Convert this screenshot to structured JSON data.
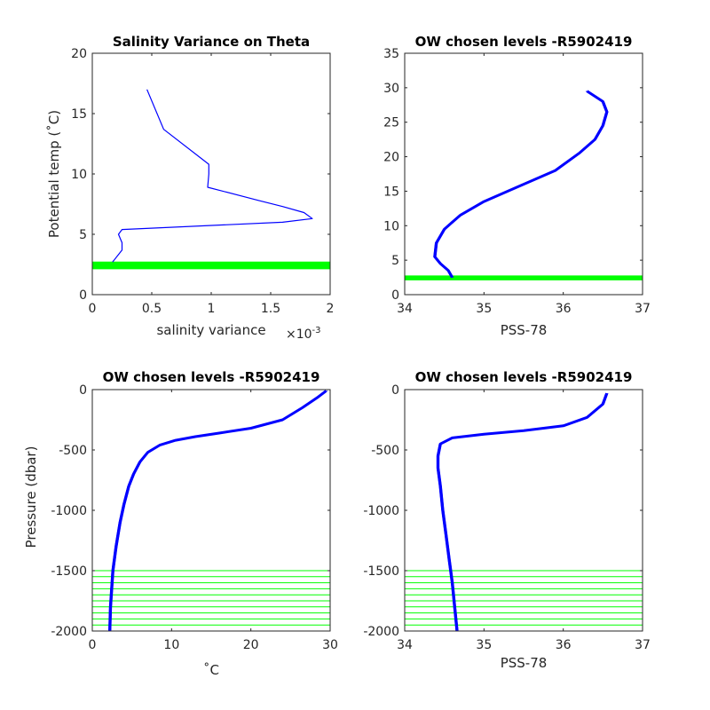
{
  "colors": {
    "series": "#0000ff",
    "levels": "#00ff00",
    "axes": "#262626"
  },
  "chart_data": [
    {
      "type": "line",
      "title": "Salinity Variance on Theta",
      "xlabel": "salinity variance",
      "x_multiplier": "×10",
      "x_multiplier_exp": "-3",
      "ylabel": "Potential temp (˚C)",
      "xlim": [
        0,
        2
      ],
      "ylim": [
        0,
        20
      ],
      "xticks": [
        0,
        0.5,
        1,
        1.5,
        2
      ],
      "xtick_labels": [
        "0",
        "0.5",
        "1",
        "1.5",
        "2"
      ],
      "yticks": [
        0,
        5,
        10,
        15,
        20
      ],
      "ytick_labels": [
        "0",
        "5",
        "10",
        "15",
        "20"
      ],
      "series": [
        {
          "x": [
            0.46,
            0.6,
            0.98,
            0.98,
            0.97,
            1.4,
            1.6,
            1.78,
            1.85,
            1.6,
            0.25,
            0.22,
            0.25,
            0.25,
            0.17
          ],
          "y": [
            17.0,
            13.7,
            10.8,
            10.0,
            8.9,
            7.8,
            7.3,
            6.8,
            6.3,
            6.0,
            5.4,
            5.0,
            4.3,
            3.7,
            2.7
          ]
        }
      ],
      "chosen_levels": [
        2.2,
        2.35,
        2.5,
        2.65
      ]
    },
    {
      "type": "line",
      "title": "OW chosen levels -R5902419",
      "xlabel": "PSS-78",
      "ylabel": "",
      "xlim": [
        34,
        37
      ],
      "ylim": [
        0,
        35
      ],
      "xticks": [
        34,
        35,
        36,
        37
      ],
      "xtick_labels": [
        "34",
        "35",
        "36",
        "37"
      ],
      "yticks": [
        0,
        5,
        10,
        15,
        20,
        25,
        30,
        35
      ],
      "ytick_labels": [
        "0",
        "5",
        "10",
        "15",
        "20",
        "25",
        "30",
        "35"
      ],
      "series": [
        {
          "x": [
            34.6,
            34.55,
            34.45,
            34.38,
            34.4,
            34.5,
            34.7,
            35.0,
            35.4,
            35.9,
            36.2,
            36.4,
            36.5,
            36.55,
            36.5,
            36.3
          ],
          "y": [
            2.5,
            3.5,
            4.5,
            5.5,
            7.5,
            9.5,
            11.5,
            13.5,
            15.5,
            18.0,
            20.5,
            22.5,
            24.5,
            26.5,
            28.0,
            29.5
          ]
        }
      ],
      "chosen_levels": [
        2.2,
        2.35,
        2.5,
        2.65
      ]
    },
    {
      "type": "line",
      "title": "OW chosen levels -R5902419",
      "xlabel": "˚C",
      "ylabel": "Pressure (dbar)",
      "xlim": [
        0,
        30
      ],
      "ylim": [
        -2000,
        0
      ],
      "xticks": [
        0,
        10,
        20,
        30
      ],
      "xtick_labels": [
        "0",
        "10",
        "20",
        "30"
      ],
      "yticks": [
        -2000,
        -1500,
        -1000,
        -500,
        0
      ],
      "ytick_labels": [
        "-2000",
        "-1500",
        "-1000",
        "-500",
        "0"
      ],
      "series": [
        {
          "x": [
            2.2,
            2.3,
            2.6,
            3.0,
            3.5,
            4.0,
            4.6,
            5.2,
            6.0,
            7.0,
            8.5,
            10.5,
            13.0,
            16.0,
            20.0,
            24.0,
            26.5,
            28.5,
            29.5
          ],
          "y": [
            -2000,
            -1800,
            -1500,
            -1300,
            -1100,
            -950,
            -800,
            -700,
            -600,
            -520,
            -460,
            -420,
            -390,
            -360,
            -320,
            -250,
            -150,
            -60,
            -10
          ]
        }
      ],
      "chosen_levels": [
        -1950,
        -1900,
        -1850,
        -1800,
        -1750,
        -1700,
        -1650,
        -1600,
        -1550,
        -1500
      ]
    },
    {
      "type": "line",
      "title": "OW chosen levels -R5902419",
      "xlabel": "PSS-78",
      "ylabel": "",
      "xlim": [
        34,
        37
      ],
      "ylim": [
        -2000,
        0
      ],
      "xticks": [
        34,
        35,
        36,
        37
      ],
      "xtick_labels": [
        "34",
        "35",
        "36",
        "37"
      ],
      "yticks": [
        -2000,
        -1500,
        -1000,
        -500,
        0
      ],
      "ytick_labels": [
        "-2000",
        "-1500",
        "-1000",
        "-500",
        "0"
      ],
      "series": [
        {
          "x": [
            34.66,
            34.63,
            34.6,
            34.56,
            34.52,
            34.48,
            34.45,
            34.42,
            34.42,
            34.45,
            34.6,
            35.0,
            35.5,
            36.0,
            36.3,
            36.5,
            36.55
          ],
          "y": [
            -2000,
            -1800,
            -1600,
            -1400,
            -1200,
            -1000,
            -800,
            -650,
            -550,
            -450,
            -400,
            -370,
            -340,
            -300,
            -230,
            -120,
            -30
          ]
        }
      ],
      "chosen_levels": [
        -1950,
        -1900,
        -1850,
        -1800,
        -1750,
        -1700,
        -1650,
        -1600,
        -1550,
        -1500
      ]
    }
  ]
}
